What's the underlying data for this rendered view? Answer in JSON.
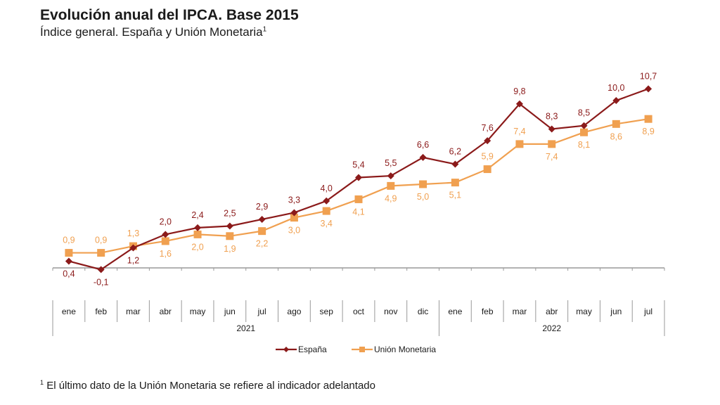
{
  "chart_data": {
    "type": "line",
    "title": "Evolución anual del IPCA. Base 2015",
    "subtitle": "Índice general. España y Unión Monetaria",
    "subtitle_sup": "1",
    "xlabel": "",
    "ylabel": "",
    "ylim": [
      0,
      10.7
    ],
    "grid": false,
    "legend_position": "bottom-center",
    "categories": [
      "ene",
      "feb",
      "mar",
      "abr",
      "may",
      "jun",
      "jul",
      "ago",
      "sep",
      "oct",
      "nov",
      "dic",
      "ene",
      "feb",
      "mar",
      "abr",
      "may",
      "jun",
      "jul"
    ],
    "year_groups": [
      {
        "label": "2021",
        "count": 12
      },
      {
        "label": "2022",
        "count": 7
      }
    ],
    "series": [
      {
        "name": "España",
        "color": "#8b1a1a",
        "marker": "diamond",
        "values": [
          0.4,
          -0.1,
          1.2,
          2.0,
          2.4,
          2.5,
          2.9,
          3.3,
          4.0,
          5.4,
          5.5,
          6.6,
          6.2,
          7.6,
          9.8,
          8.3,
          8.5,
          10.0,
          10.7
        ],
        "labels": [
          "0,4",
          "-0,1",
          "1,2",
          "2,0",
          "2,4",
          "2,5",
          "2,9",
          "3,3",
          "4,0",
          "5,4",
          "5,5",
          "6,6",
          "6,2",
          "7,6",
          "9,8",
          "8,3",
          "8,5",
          "10,0",
          "10,7"
        ]
      },
      {
        "name": "Unión Monetaria",
        "color": "#f0a050",
        "marker": "square",
        "values": [
          0.9,
          0.9,
          1.3,
          1.6,
          2.0,
          1.9,
          2.2,
          3.0,
          3.4,
          4.1,
          4.9,
          5.0,
          5.1,
          5.9,
          7.4,
          7.4,
          8.1,
          8.6,
          8.9
        ],
        "labels": [
          "0,9",
          "0,9",
          "1,3",
          "1,6",
          "2,0",
          "1,9",
          "2,2",
          "3,0",
          "3,4",
          "4,1",
          "4,9",
          "5,0",
          "5,1",
          "5,9",
          "7,4",
          "7,4",
          "8,1",
          "8,6",
          "8,9"
        ]
      }
    ],
    "label_positions": {
      "España": [
        "below",
        "below",
        "below",
        "above",
        "above",
        "above",
        "above",
        "above",
        "above",
        "above",
        "above",
        "above",
        "above",
        "above",
        "above",
        "above",
        "above",
        "above",
        "above"
      ],
      "Unión Monetaria": [
        "above",
        "above",
        "above",
        "below",
        "below",
        "below",
        "below",
        "below",
        "below",
        "below",
        "below",
        "below",
        "below",
        "above",
        "above",
        "below",
        "below",
        "below",
        "below"
      ]
    },
    "footnote_sup": "1",
    "footnote": "El último dato de la Unión Monetaria se refiere al indicador adelantado"
  }
}
